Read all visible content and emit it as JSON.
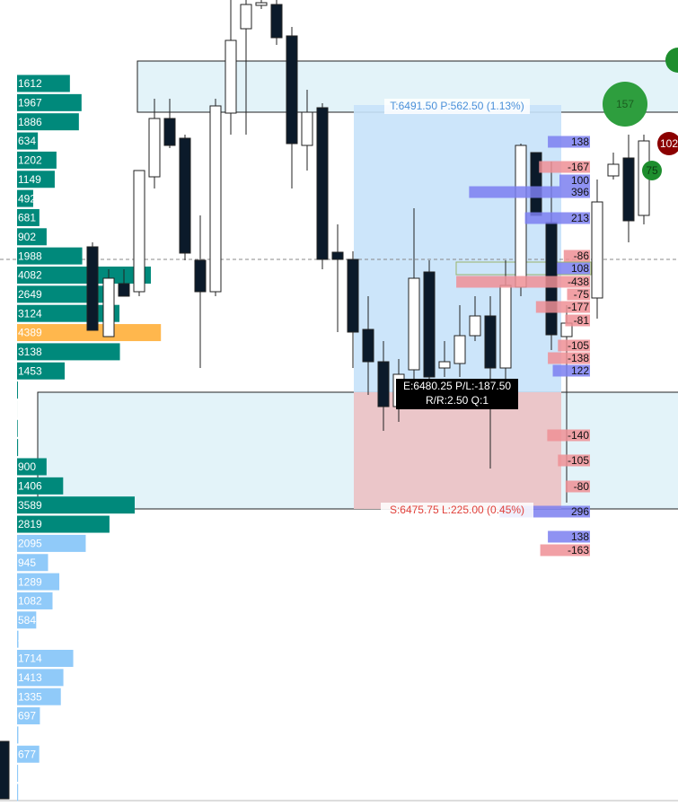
{
  "volume_profile": {
    "rows": [
      {
        "value": 1612,
        "color": "#00897b"
      },
      {
        "value": 1967,
        "color": "#00897b"
      },
      {
        "value": 1886,
        "color": "#00897b"
      },
      {
        "value": 634,
        "color": "#00897b"
      },
      {
        "value": 1202,
        "color": "#00897b"
      },
      {
        "value": 1149,
        "color": "#00897b"
      },
      {
        "value": 492,
        "color": "#00897b"
      },
      {
        "value": 681,
        "color": "#00897b"
      },
      {
        "value": 902,
        "color": "#00897b"
      },
      {
        "value": 1988,
        "color": "#00897b"
      },
      {
        "value": 4082,
        "color": "#00897b"
      },
      {
        "value": 2649,
        "color": "#00897b"
      },
      {
        "value": 3124,
        "color": "#00897b"
      },
      {
        "value": 4389,
        "color": "#ffb74d"
      },
      {
        "value": 3138,
        "color": "#00897b"
      },
      {
        "value": 1453,
        "color": "#00897b"
      },
      {
        "value": 28,
        "color": "#00897b"
      },
      {
        "value": 1,
        "color": "#00897b"
      },
      {
        "value": 20,
        "color": "#00897b"
      },
      {
        "value": 31,
        "color": "#00897b"
      },
      {
        "value": 900,
        "color": "#00897b"
      },
      {
        "value": 1406,
        "color": "#00897b"
      },
      {
        "value": 3589,
        "color": "#00897b"
      },
      {
        "value": 2819,
        "color": "#00897b"
      },
      {
        "value": 2095,
        "color": "#90caf9"
      },
      {
        "value": 945,
        "color": "#90caf9"
      },
      {
        "value": 1289,
        "color": "#90caf9"
      },
      {
        "value": 1082,
        "color": "#90caf9"
      },
      {
        "value": 584,
        "color": "#90caf9"
      },
      {
        "value": 42,
        "color": "#90caf9"
      },
      {
        "value": 1714,
        "color": "#90caf9"
      },
      {
        "value": 1413,
        "color": "#90caf9"
      },
      {
        "value": 1335,
        "color": "#90caf9"
      },
      {
        "value": 697,
        "color": "#90caf9"
      },
      {
        "value": 39,
        "color": "#90caf9"
      },
      {
        "value": 677,
        "color": "#90caf9"
      },
      {
        "value": 31,
        "color": "#90caf9"
      },
      {
        "value": 33,
        "color": "#90caf9"
      }
    ]
  },
  "order_flow": {
    "values": [
      138,
      -167,
      100,
      396,
      213,
      -86,
      108,
      -438,
      -75,
      -177,
      -81,
      -105,
      -138,
      122,
      -140,
      -105,
      -80,
      296,
      138,
      -163
    ],
    "positive_color": "#7b7ff0",
    "negative_color": "#ef8f95"
  },
  "trade": {
    "target": "T:6491.50 P:562.50 (1.13%)",
    "entry": "E:6480.25 P/L:-187.50",
    "ratio": "R/R:2.50 Q:1",
    "stop": "S:6475.75 L:225.00 (0.45%)"
  },
  "bubbles": [
    157,
    75,
    102
  ]
}
